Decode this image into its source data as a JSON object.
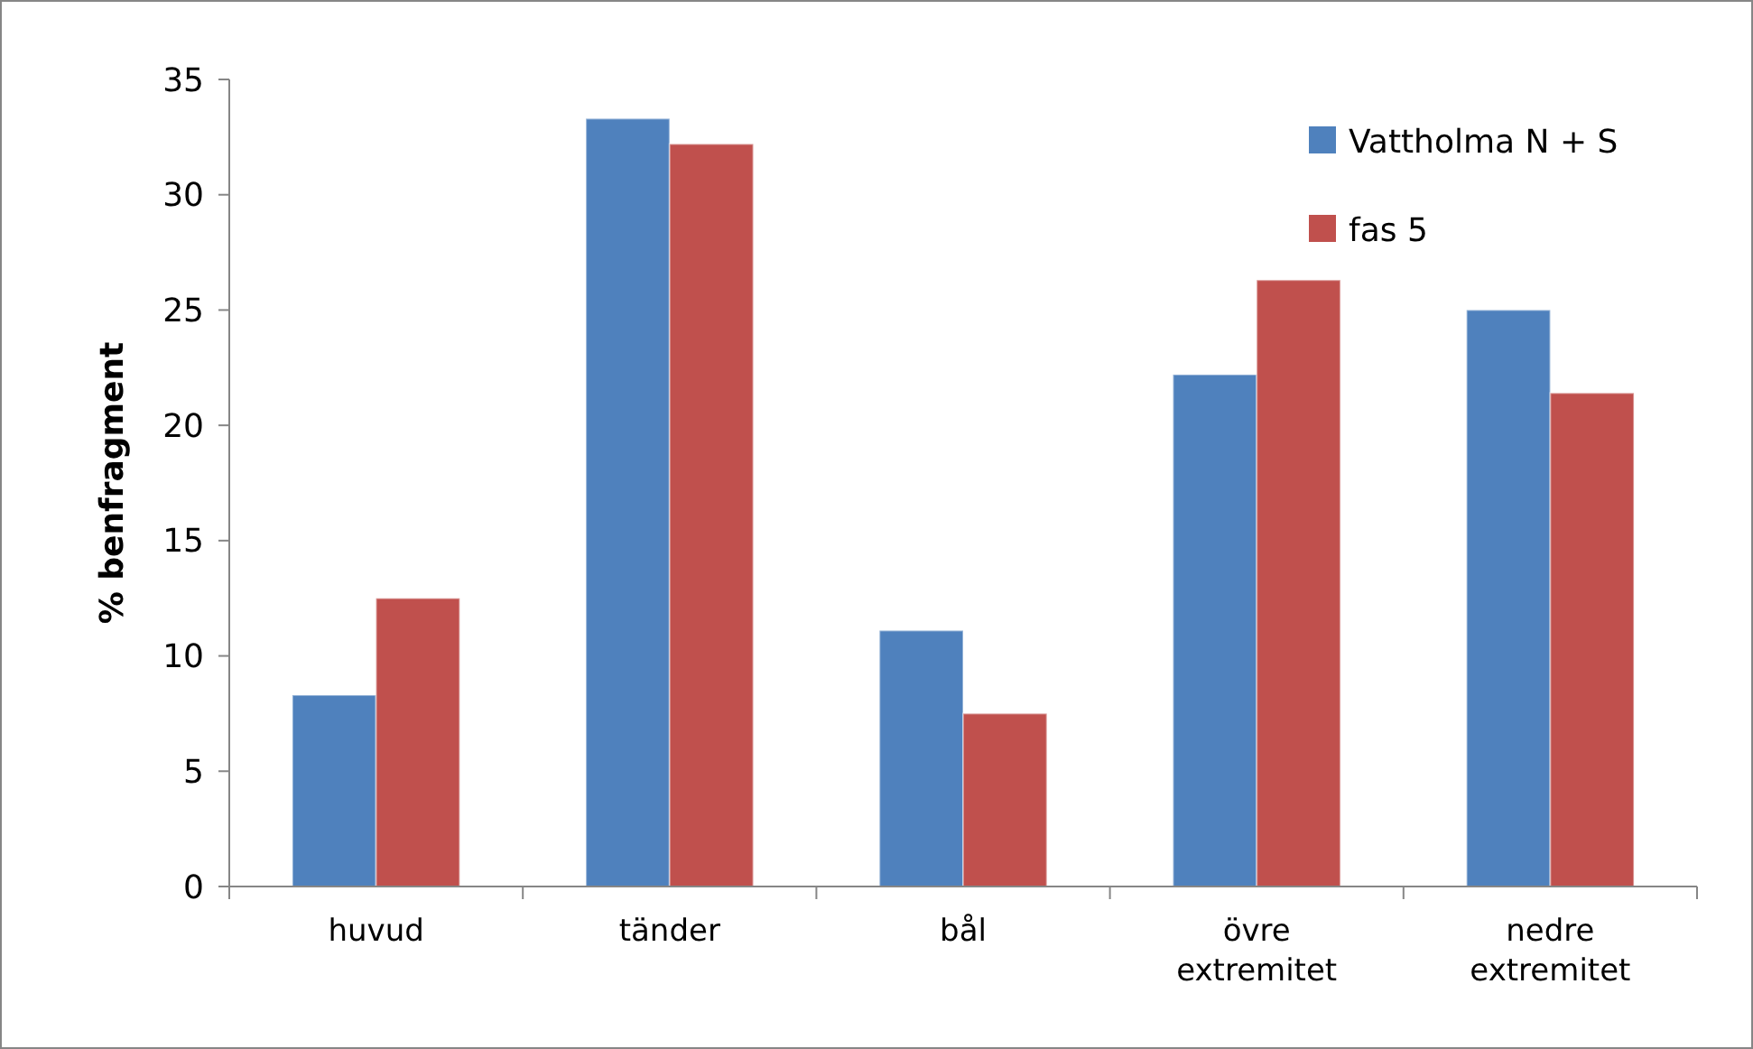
{
  "chart_data": {
    "type": "bar",
    "ylabel": "% benfragment",
    "categories": [
      "huvud",
      "tänder",
      "bål",
      "övre extremitet",
      "nedre extremitet"
    ],
    "series": [
      {
        "name": "Vattholma N + S",
        "color": "#4f81bd",
        "values": [
          8.3,
          33.3,
          11.1,
          22.2,
          25.0
        ]
      },
      {
        "name": "fas 5",
        "color": "#c0504d",
        "values": [
          12.5,
          32.2,
          7.5,
          26.3,
          21.4
        ]
      }
    ],
    "ylim": [
      0,
      35
    ],
    "yticks": [
      0,
      5,
      10,
      15,
      20,
      25,
      30,
      35
    ],
    "grid": false,
    "legend": "top right"
  }
}
